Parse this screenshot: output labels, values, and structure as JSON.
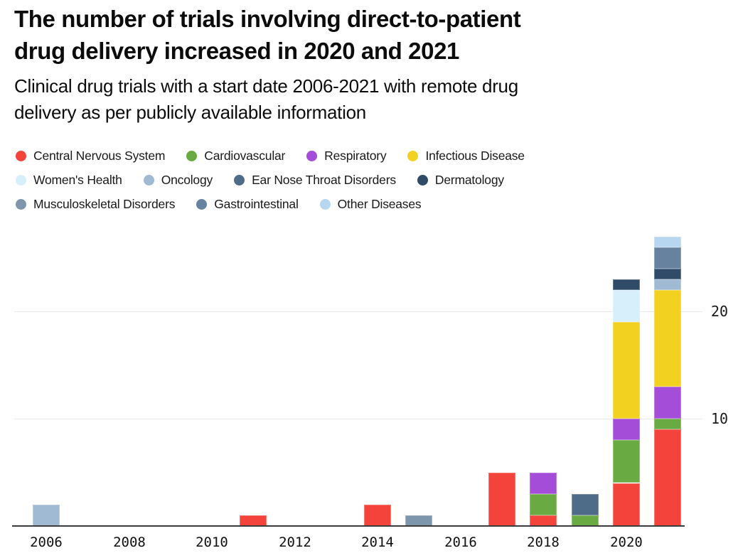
{
  "title": {
    "line1": "The number of trials involving direct-to-patient",
    "line2": "drug delivery increased in 2020 and 2021"
  },
  "subtitle": {
    "line1": "Clinical drug trials with a start date 2006-2021 with remote drug",
    "line2": "delivery as per publicly available information"
  },
  "legend": {
    "rows": [
      [
        0,
        1,
        2,
        3
      ],
      [
        4,
        5,
        6,
        7
      ],
      [
        8,
        9,
        10
      ]
    ]
  },
  "axis": {
    "baseline_color": "#3c3c3c",
    "gridline_color": "#e9e9e9",
    "tick_label_color": "#1a1a1a"
  },
  "chart_data": {
    "type": "bar",
    "stacked": true,
    "title": "The number of trials involving direct-to-patient drug delivery increased in 2020 and 2021",
    "subtitle": "Clinical drug trials with a start date 2006-2021 with remote drug delivery as per publicly available information",
    "x": [
      2006,
      2007,
      2008,
      2009,
      2010,
      2011,
      2012,
      2013,
      2014,
      2015,
      2016,
      2017,
      2018,
      2019,
      2020,
      2021
    ],
    "x_tick_labels": [
      "2006",
      "2008",
      "2010",
      "2012",
      "2014",
      "2016",
      "2018",
      "2020"
    ],
    "y_ticks": [
      10,
      20
    ],
    "ylim": [
      0,
      29
    ],
    "grid": "horizontal",
    "legend_position": "top",
    "series": [
      {
        "name": "Central Nervous System",
        "color": "#F4433B",
        "values": [
          0,
          0,
          0,
          0,
          0,
          1,
          0,
          0,
          2,
          0,
          0,
          5,
          1,
          0,
          4,
          9
        ]
      },
      {
        "name": "Cardiovascular",
        "color": "#6AAA42",
        "values": [
          0,
          0,
          0,
          0,
          0,
          0,
          0,
          0,
          0,
          0,
          0,
          0,
          2,
          1,
          4,
          1
        ]
      },
      {
        "name": "Respiratory",
        "color": "#A34DD8",
        "values": [
          0,
          0,
          0,
          0,
          0,
          0,
          0,
          0,
          0,
          0,
          0,
          0,
          2,
          0,
          2,
          3
        ]
      },
      {
        "name": "Infectious Disease",
        "color": "#F3D120",
        "values": [
          0,
          0,
          0,
          0,
          0,
          0,
          0,
          0,
          0,
          0,
          0,
          0,
          0,
          0,
          9,
          9
        ]
      },
      {
        "name": "Women's Health",
        "color": "#D7EEFB",
        "values": [
          0,
          0,
          0,
          0,
          0,
          0,
          0,
          0,
          0,
          0,
          0,
          0,
          0,
          0,
          3,
          0
        ]
      },
      {
        "name": "Oncology",
        "color": "#A0BAD3",
        "values": [
          2,
          0,
          0,
          0,
          0,
          0,
          0,
          0,
          0,
          0,
          0,
          0,
          0,
          0,
          0,
          1
        ]
      },
      {
        "name": "Ear Nose Throat Disorders",
        "color": "#4E6B88",
        "values": [
          0,
          0,
          0,
          0,
          0,
          0,
          0,
          0,
          0,
          0,
          0,
          0,
          0,
          2,
          0,
          0
        ]
      },
      {
        "name": "Dermatology",
        "color": "#2F4B68",
        "values": [
          0,
          0,
          0,
          0,
          0,
          0,
          0,
          0,
          0,
          0,
          0,
          0,
          0,
          0,
          1,
          1
        ]
      },
      {
        "name": "Musculoskeletal Disorders",
        "color": "#7E96AC",
        "values": [
          0,
          0,
          0,
          0,
          0,
          0,
          0,
          0,
          0,
          1,
          0,
          0,
          0,
          0,
          0,
          0
        ]
      },
      {
        "name": "Gastrointestinal",
        "color": "#66829E",
        "values": [
          0,
          0,
          0,
          0,
          0,
          0,
          0,
          0,
          0,
          0,
          0,
          0,
          0,
          0,
          0,
          2
        ]
      },
      {
        "name": "Other Diseases",
        "color": "#B7D6EF",
        "values": [
          0,
          0,
          0,
          0,
          0,
          0,
          0,
          0,
          0,
          0,
          0,
          0,
          0,
          0,
          0,
          1
        ]
      }
    ]
  }
}
